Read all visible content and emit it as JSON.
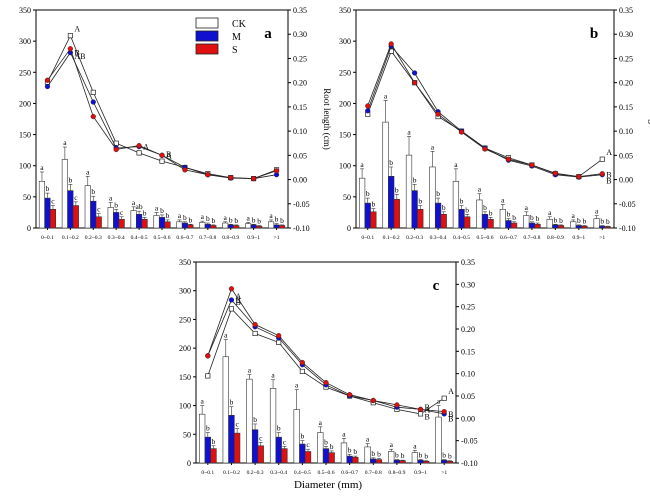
{
  "figure": {
    "xlabel": "Diameter (mm)",
    "left_axis_label": "Root length (cm)",
    "right_axis_label": "Root length ratio"
  },
  "legend": [
    {
      "key": "CK",
      "color": "#ffffff"
    },
    {
      "key": "M",
      "color": "#1010d0"
    },
    {
      "key": "S",
      "color": "#e01010"
    }
  ],
  "chart_data": [
    {
      "type": "bar",
      "panel_label": "a",
      "categories": [
        "0~0.1",
        "0.1~0.2",
        "0.2~0.3",
        "0.3~0.4",
        "0.4~0.5",
        "0.5~0.6",
        "0.6~0.7",
        "0.7~0.8",
        "0.8~0.9",
        "0.9~1",
        ">1"
      ],
      "ylim": [
        0,
        350
      ],
      "ylim_right": [
        -0.1,
        0.35
      ],
      "yticks": [
        0,
        50,
        100,
        150,
        200,
        250,
        300,
        350
      ],
      "yticks_right": [
        "-0.10",
        "-0.05",
        "0.00",
        "0.05",
        "0.10",
        "0.15",
        "0.20",
        "0.25",
        "0.30",
        "0.35"
      ],
      "ylabel": "",
      "ylabel_right": "Root length (cm)",
      "series": [
        {
          "name": "CK",
          "values": [
            75,
            110,
            68,
            33,
            28,
            20,
            10,
            9,
            8,
            7,
            10
          ],
          "errors": [
            15,
            20,
            15,
            8,
            6,
            5,
            3,
            2,
            2,
            2,
            3
          ],
          "letters": [
            "a",
            "a",
            "a",
            "a",
            "a",
            "a",
            "a",
            "a",
            "a",
            "a",
            "a"
          ]
        },
        {
          "name": "M",
          "values": [
            48,
            60,
            43,
            25,
            22,
            17,
            8,
            6,
            5,
            5,
            5
          ],
          "errors": [
            8,
            10,
            8,
            5,
            5,
            4,
            2,
            2,
            1,
            1,
            2
          ],
          "letters": [
            "b",
            "b",
            "b",
            "b",
            "ab",
            "b",
            "b",
            "b",
            "b",
            "b",
            "b"
          ]
        },
        {
          "name": "S",
          "values": [
            30,
            36,
            18,
            14,
            14,
            10,
            5,
            4,
            4,
            3,
            4
          ],
          "errors": [
            6,
            6,
            5,
            4,
            3,
            3,
            1,
            1,
            1,
            1,
            1
          ],
          "letters": [
            "c",
            "c",
            "c",
            "c",
            "b",
            "b",
            "b",
            "b",
            "b",
            "b",
            "b"
          ]
        }
      ],
      "ratio_lines": [
        {
          "name": "CK",
          "values": [
            0.201,
            0.297,
            0.18,
            0.075,
            0.055,
            0.038,
            0.025,
            0.012,
            0.004,
            0.002,
            0.02
          ],
          "letters": [
            "",
            "A",
            "",
            "",
            "",
            "B",
            "",
            "",
            "",
            "",
            ""
          ]
        },
        {
          "name": "M",
          "values": [
            0.192,
            0.262,
            0.16,
            0.065,
            0.068,
            0.05,
            0.025,
            0.01,
            0.003,
            0.002,
            0.01
          ],
          "letters": [
            "",
            "B",
            "",
            "",
            "A",
            "A",
            "",
            "",
            "",
            "",
            ""
          ]
        },
        {
          "name": "S",
          "values": [
            0.205,
            0.27,
            0.13,
            0.062,
            0.07,
            0.05,
            0.02,
            0.01,
            0.004,
            0.002,
            0.018
          ],
          "letters": [
            "",
            "AB",
            "",
            "",
            "",
            "",
            "",
            "",
            "",
            "",
            ""
          ]
        }
      ]
    },
    {
      "type": "bar",
      "panel_label": "b",
      "categories": [
        "0~0.1",
        "0.1~0.2",
        "0.2~0.3",
        "0.3~0.4",
        "0.4~0.5",
        "0.5~0.6",
        "0.6~0.7",
        "0.7~0.8",
        "0.8~0.9",
        "0.9~1",
        ">1"
      ],
      "ylim": [
        0,
        350
      ],
      "ylim_right": [
        -0.1,
        0.35
      ],
      "yticks": [
        0,
        50,
        100,
        150,
        200,
        250,
        300,
        350
      ],
      "yticks_right": [
        "-0.10",
        "-0.05",
        "0.00",
        "0.05",
        "0.10",
        "0.15",
        "0.20",
        "0.25",
        "0.30",
        "0.35"
      ],
      "ylabel": "",
      "ylabel_right": "Root length ratio",
      "series": [
        {
          "name": "CK",
          "values": [
            80,
            170,
            117,
            98,
            75,
            45,
            30,
            20,
            14,
            10,
            15
          ],
          "errors": [
            15,
            35,
            30,
            25,
            20,
            10,
            8,
            6,
            4,
            3,
            5
          ],
          "letters": [
            "a",
            "a",
            "a",
            "a",
            "a",
            "a",
            "a",
            "a",
            "a",
            "a",
            "a"
          ]
        },
        {
          "name": "M",
          "values": [
            40,
            83,
            60,
            40,
            30,
            22,
            12,
            8,
            5,
            4,
            3
          ],
          "errors": [
            8,
            15,
            10,
            8,
            6,
            4,
            3,
            2,
            1,
            1,
            1
          ],
          "letters": [
            "b",
            "b",
            "b",
            "b",
            "b",
            "b",
            "b",
            "b",
            "b",
            "b",
            "b"
          ]
        },
        {
          "name": "S",
          "values": [
            26,
            46,
            30,
            22,
            18,
            14,
            8,
            6,
            4,
            3,
            2
          ],
          "errors": [
            5,
            8,
            6,
            4,
            4,
            3,
            2,
            2,
            1,
            1,
            1
          ],
          "letters": [
            "b",
            "b",
            "b",
            "b",
            "b",
            "b",
            "b",
            "b",
            "b",
            "b",
            "b"
          ]
        }
      ],
      "ratio_lines": [
        {
          "name": "CK",
          "values": [
            0.135,
            0.265,
            0.2,
            0.13,
            0.1,
            0.065,
            0.045,
            0.03,
            0.012,
            0.006,
            0.042
          ],
          "letters": [
            "",
            "",
            "",
            "",
            "",
            "",
            "",
            "",
            "",
            "",
            "A"
          ]
        },
        {
          "name": "M",
          "values": [
            0.142,
            0.275,
            0.22,
            0.14,
            0.1,
            0.065,
            0.04,
            0.028,
            0.01,
            0.005,
            0.01
          ],
          "letters": [
            "",
            "",
            "",
            "",
            "",
            "",
            "",
            "",
            "",
            "",
            "B"
          ]
        },
        {
          "name": "S",
          "values": [
            0.152,
            0.28,
            0.2,
            0.135,
            0.098,
            0.063,
            0.042,
            0.03,
            0.013,
            0.006,
            0.012
          ],
          "letters": [
            "",
            "",
            "",
            "",
            "",
            "",
            "",
            "",
            "",
            "",
            "B"
          ]
        }
      ]
    },
    {
      "type": "bar",
      "panel_label": "c",
      "categories": [
        "0~0.1",
        "0.1~0.2",
        "0.2~0.3",
        "0.3~0.4",
        "0.4~0.5",
        "0.5~0.6",
        "0.6~0.7",
        "0.7~0.8",
        "0.8~0.9",
        "0.9~1",
        ">1"
      ],
      "ylim": [
        0,
        350
      ],
      "ylim_right": [
        -0.1,
        0.35
      ],
      "yticks": [
        0,
        50,
        100,
        150,
        200,
        250,
        300,
        350
      ],
      "yticks_right": [
        "-0.10",
        "-0.05",
        "0.00",
        "0.05",
        "0.10",
        "0.15",
        "0.20",
        "0.25",
        "0.30",
        "0.35"
      ],
      "ylabel": "",
      "ylabel_right": "",
      "series": [
        {
          "name": "CK",
          "values": [
            85,
            185,
            146,
            130,
            93,
            53,
            35,
            28,
            20,
            18,
            80
          ],
          "errors": [
            15,
            30,
            8,
            15,
            35,
            10,
            8,
            6,
            4,
            4,
            20
          ],
          "letters": [
            "a",
            "a",
            "a",
            "a",
            "a",
            "a",
            "a",
            "a",
            "a",
            "a",
            "a"
          ]
        },
        {
          "name": "M",
          "values": [
            45,
            83,
            58,
            45,
            33,
            25,
            12,
            7,
            5,
            5,
            5
          ],
          "errors": [
            8,
            15,
            10,
            8,
            6,
            4,
            3,
            2,
            1,
            1,
            1
          ],
          "letters": [
            "b",
            "b",
            "b",
            "b",
            "b",
            "b",
            "b",
            "b",
            "b",
            "b",
            "b"
          ]
        },
        {
          "name": "S",
          "values": [
            25,
            52,
            30,
            25,
            20,
            18,
            10,
            6,
            4,
            3,
            3
          ],
          "errors": [
            5,
            8,
            6,
            4,
            4,
            3,
            2,
            2,
            1,
            1,
            1
          ],
          "letters": [
            "b",
            "c",
            "c",
            "c",
            "c",
            "b",
            "b",
            "b",
            "b",
            "b",
            "b"
          ]
        }
      ],
      "ratio_lines": [
        {
          "name": "CK",
          "values": [
            0.095,
            0.245,
            0.19,
            0.17,
            0.105,
            0.07,
            0.05,
            0.035,
            0.02,
            0.01,
            0.045
          ],
          "letters": [
            "",
            "B",
            "",
            "",
            "",
            "",
            "",
            "",
            "",
            "B",
            "A"
          ]
        },
        {
          "name": "M",
          "values": [
            0.14,
            0.265,
            0.205,
            0.18,
            0.12,
            0.075,
            0.05,
            0.04,
            0.025,
            0.02,
            0.01
          ],
          "letters": [
            "",
            "B",
            "",
            "",
            "",
            "",
            "",
            "",
            "",
            "A",
            "B"
          ]
        },
        {
          "name": "S",
          "values": [
            0.14,
            0.29,
            0.21,
            0.185,
            0.125,
            0.08,
            0.053,
            0.04,
            0.03,
            0.02,
            0.015
          ],
          "letters": [
            "",
            "A",
            "",
            "",
            "",
            "",
            "",
            "",
            "",
            "B",
            "B"
          ]
        }
      ]
    }
  ]
}
